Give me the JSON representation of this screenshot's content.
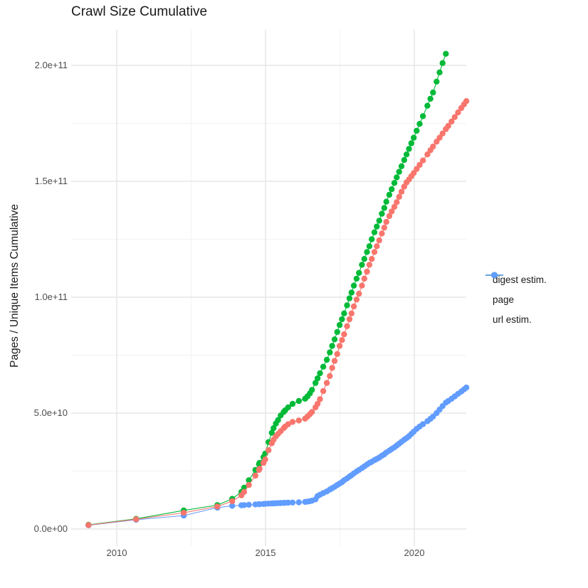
{
  "title": "Crawl Size Cumulative",
  "y_axis": {
    "title": "Pages / Unique Items Cumulative",
    "tick_labels": [
      "0.0e+00",
      "5.0e+10",
      "1.0e+11",
      "1.5e+11",
      "2.0e+11"
    ]
  },
  "x_axis": {
    "tick_labels": [
      "2010",
      "2015",
      "2020"
    ]
  },
  "legend": {
    "items": [
      {
        "label": "digest estim.",
        "color": "#F8766D"
      },
      {
        "label": "page",
        "color": "#00BA38"
      },
      {
        "label": "url estim.",
        "color": "#619CFF"
      }
    ]
  },
  "colors": {
    "digest": "#F8766D",
    "page": "#00BA38",
    "url": "#619CFF",
    "grid_major": "#e6e6e6",
    "grid_minor": "#f2f2f2",
    "axis_text": "#4d4d4d",
    "text": "#1a1a1a"
  },
  "chart_data": {
    "type": "scatter",
    "title": "Crawl Size Cumulative",
    "xlabel": "",
    "ylabel": "Pages / Unique Items Cumulative",
    "grid": true,
    "legend_position": "right",
    "x_ticks": [
      2010,
      2015,
      2020
    ],
    "x_minor_ticks": [
      2012.5,
      2017.5
    ],
    "x_range": [
      2008.5,
      2022.2
    ],
    "y_ticks": [
      0,
      50000000000.0,
      100000000000.0,
      150000000000.0,
      200000000000.0
    ],
    "y_tick_labels": [
      "0.0e+00",
      "5.0e+10",
      "1.0e+11",
      "1.5e+11",
      "2.0e+11"
    ],
    "y_minor_ticks": [
      25000000000.0,
      75000000000.0,
      125000000000.0,
      175000000000.0
    ],
    "y_range": [
      -8000000000.0,
      215000000000.0
    ],
    "draw_order": [
      "url estim.",
      "page",
      "digest estim."
    ],
    "series": [
      {
        "name": "url estim.",
        "color": "#619CFF",
        "points": [
          [
            2009.05,
            1600000000.0
          ],
          [
            2010.65,
            4000000000.0
          ],
          [
            2012.25,
            5800000000.0
          ],
          [
            2013.38,
            9200000000.0
          ],
          [
            2013.88,
            10000000000.0
          ],
          [
            2014.19,
            10200000000.0
          ],
          [
            2014.28,
            10300000000.0
          ],
          [
            2014.44,
            10450000000.0
          ],
          [
            2014.66,
            10600000000.0
          ],
          [
            2014.78,
            10700000000.0
          ],
          [
            2014.8,
            10720000000.0
          ],
          [
            2014.93,
            10800000000.0
          ],
          [
            2014.99,
            10850000000.0
          ],
          [
            2015.1,
            10950000000.0
          ],
          [
            2015.21,
            11000000000.0
          ],
          [
            2015.27,
            11050000000.0
          ],
          [
            2015.35,
            11100000000.0
          ],
          [
            2015.42,
            11150000000.0
          ],
          [
            2015.51,
            11200000000.0
          ],
          [
            2015.61,
            11250000000.0
          ],
          [
            2015.66,
            11300000000.0
          ],
          [
            2015.76,
            11350000000.0
          ],
          [
            2015.91,
            11400000000.0
          ],
          [
            2016.12,
            11500000000.0
          ],
          [
            2016.33,
            11700000000.0
          ],
          [
            2016.41,
            11800000000.0
          ],
          [
            2016.49,
            12000000000.0
          ],
          [
            2016.56,
            12200000000.0
          ],
          [
            2016.68,
            12800000000.0
          ],
          [
            2016.75,
            14200000000.0
          ],
          [
            2016.83,
            14800000000.0
          ],
          [
            2016.94,
            15500000000.0
          ],
          [
            2017.06,
            16200000000.0
          ],
          [
            2017.16,
            17000000000.0
          ],
          [
            2017.24,
            17600000000.0
          ],
          [
            2017.32,
            18200000000.0
          ],
          [
            2017.41,
            19000000000.0
          ],
          [
            2017.49,
            19600000000.0
          ],
          [
            2017.57,
            20200000000.0
          ],
          [
            2017.64,
            21000000000.0
          ],
          [
            2017.74,
            21800000000.0
          ],
          [
            2017.82,
            22600000000.0
          ],
          [
            2017.89,
            23200000000.0
          ],
          [
            2017.97,
            24000000000.0
          ],
          [
            2018.06,
            24800000000.0
          ],
          [
            2018.14,
            25500000000.0
          ],
          [
            2018.24,
            26300000000.0
          ],
          [
            2018.32,
            27000000000.0
          ],
          [
            2018.41,
            27800000000.0
          ],
          [
            2018.49,
            28500000000.0
          ],
          [
            2018.57,
            29000000000.0
          ],
          [
            2018.66,
            29700000000.0
          ],
          [
            2018.74,
            30200000000.0
          ],
          [
            2018.82,
            30800000000.0
          ],
          [
            2018.91,
            31600000000.0
          ],
          [
            2018.99,
            32200000000.0
          ],
          [
            2019.06,
            33000000000.0
          ],
          [
            2019.16,
            33800000000.0
          ],
          [
            2019.24,
            34500000000.0
          ],
          [
            2019.33,
            35200000000.0
          ],
          [
            2019.41,
            36000000000.0
          ],
          [
            2019.49,
            36800000000.0
          ],
          [
            2019.57,
            37600000000.0
          ],
          [
            2019.66,
            38500000000.0
          ],
          [
            2019.74,
            39200000000.0
          ],
          [
            2019.82,
            40000000000.0
          ],
          [
            2019.9,
            41000000000.0
          ],
          [
            2019.98,
            42000000000.0
          ],
          [
            2020.08,
            43200000000.0
          ],
          [
            2020.18,
            44200000000.0
          ],
          [
            2020.29,
            45200000000.0
          ],
          [
            2020.44,
            46500000000.0
          ],
          [
            2020.54,
            47500000000.0
          ],
          [
            2020.63,
            48500000000.0
          ],
          [
            2020.75,
            50000000000.0
          ],
          [
            2020.85,
            51500000000.0
          ],
          [
            2020.95,
            53000000000.0
          ],
          [
            2021.06,
            54500000000.0
          ],
          [
            2021.14,
            55200000000.0
          ],
          [
            2021.25,
            56200000000.0
          ],
          [
            2021.36,
            57200000000.0
          ],
          [
            2021.47,
            58300000000.0
          ],
          [
            2021.58,
            59300000000.0
          ],
          [
            2021.67,
            60200000000.0
          ],
          [
            2021.75,
            61000000000.0
          ]
        ]
      },
      {
        "name": "page",
        "color": "#00BA38",
        "points": [
          [
            2009.05,
            1800000000.0
          ],
          [
            2010.65,
            4400000000.0
          ],
          [
            2012.25,
            8000000000.0
          ],
          [
            2013.38,
            10300000000.0
          ],
          [
            2013.88,
            13000000000.0
          ],
          [
            2014.19,
            16000000000.0
          ],
          [
            2014.28,
            17800000000.0
          ],
          [
            2014.44,
            21000000000.0
          ],
          [
            2014.66,
            25500000000.0
          ],
          [
            2014.78,
            28000000000.0
          ],
          [
            2014.8,
            28500000000.0
          ],
          [
            2014.93,
            31000000000.0
          ],
          [
            2014.99,
            32500000000.0
          ],
          [
            2015.1,
            37500000000.0
          ],
          [
            2015.21,
            41500000000.0
          ],
          [
            2015.27,
            43500000000.0
          ],
          [
            2015.35,
            45500000000.0
          ],
          [
            2015.42,
            47000000000.0
          ],
          [
            2015.51,
            49000000000.0
          ],
          [
            2015.61,
            50500000000.0
          ],
          [
            2015.66,
            51200000000.0
          ],
          [
            2015.76,
            52500000000.0
          ],
          [
            2015.91,
            54000000000.0
          ],
          [
            2016.12,
            55200000000.0
          ],
          [
            2016.33,
            56200000000.0
          ],
          [
            2016.41,
            57200000000.0
          ],
          [
            2016.49,
            58500000000.0
          ],
          [
            2016.56,
            60000000000.0
          ],
          [
            2016.68,
            63000000000.0
          ],
          [
            2016.75,
            65000000000.0
          ],
          [
            2016.83,
            67200000000.0
          ],
          [
            2016.94,
            70000000000.0
          ],
          [
            2017.06,
            73000000000.0
          ],
          [
            2017.16,
            76200000000.0
          ],
          [
            2017.24,
            79000000000.0
          ],
          [
            2017.32,
            81800000000.0
          ],
          [
            2017.41,
            85000000000.0
          ],
          [
            2017.49,
            88000000000.0
          ],
          [
            2017.57,
            90500000000.0
          ],
          [
            2017.64,
            93000000000.0
          ],
          [
            2017.74,
            96500000000.0
          ],
          [
            2017.82,
            99500000000.0
          ],
          [
            2017.89,
            102000000000.0
          ],
          [
            2017.97,
            105000000000.0
          ],
          [
            2018.06,
            108000000000.0
          ],
          [
            2018.14,
            110500000000.0
          ],
          [
            2018.24,
            114000000000.0
          ],
          [
            2018.32,
            116500000000.0
          ],
          [
            2018.41,
            119500000000.0
          ],
          [
            2018.49,
            122000000000.0
          ],
          [
            2018.57,
            125000000000.0
          ],
          [
            2018.66,
            128000000000.0
          ],
          [
            2018.74,
            130500000000.0
          ],
          [
            2018.82,
            133000000000.0
          ],
          [
            2018.91,
            136000000000.0
          ],
          [
            2018.99,
            138500000000.0
          ],
          [
            2019.06,
            141200000000.0
          ],
          [
            2019.16,
            144200000000.0
          ],
          [
            2019.24,
            146600000000.0
          ],
          [
            2019.33,
            149300000000.0
          ],
          [
            2019.41,
            151700000000.0
          ],
          [
            2019.49,
            154100000000.0
          ],
          [
            2019.57,
            156500000000.0
          ],
          [
            2019.66,
            159200000000.0
          ],
          [
            2019.74,
            161600000000.0
          ],
          [
            2019.82,
            164000000000.0
          ],
          [
            2019.9,
            166400000000.0
          ],
          [
            2019.98,
            168800000000.0
          ],
          [
            2020.08,
            171800000000.0
          ],
          [
            2020.18,
            174800000000.0
          ],
          [
            2020.29,
            178100000000.0
          ],
          [
            2020.44,
            182600000000.0
          ],
          [
            2020.54,
            185600000000.0
          ],
          [
            2020.63,
            188300000000.0
          ],
          [
            2020.75,
            193000000000.0
          ],
          [
            2020.85,
            197000000000.0
          ],
          [
            2020.95,
            201000000000.0
          ],
          [
            2021.06,
            205000000000.0
          ]
        ]
      },
      {
        "name": "digest estim.",
        "color": "#F8766D",
        "points": [
          [
            2009.05,
            1700000000.0
          ],
          [
            2010.65,
            4200000000.0
          ],
          [
            2012.25,
            7000000000.0
          ],
          [
            2013.38,
            9700000000.0
          ],
          [
            2013.88,
            12000000000.0
          ],
          [
            2014.19,
            14500000000.0
          ],
          [
            2014.28,
            16000000000.0
          ],
          [
            2014.44,
            19000000000.0
          ],
          [
            2014.66,
            23000000000.0
          ],
          [
            2014.78,
            25500000000.0
          ],
          [
            2014.8,
            26000000000.0
          ],
          [
            2014.93,
            28500000000.0
          ],
          [
            2014.99,
            30000000000.0
          ],
          [
            2015.1,
            34000000000.0
          ],
          [
            2015.21,
            37000000000.0
          ],
          [
            2015.27,
            38500000000.0
          ],
          [
            2015.35,
            40000000000.0
          ],
          [
            2015.42,
            41000000000.0
          ],
          [
            2015.51,
            42200000000.0
          ],
          [
            2015.61,
            43500000000.0
          ],
          [
            2015.66,
            44200000000.0
          ],
          [
            2015.76,
            45200000000.0
          ],
          [
            2015.91,
            46200000000.0
          ],
          [
            2016.12,
            46800000000.0
          ],
          [
            2016.33,
            47600000000.0
          ],
          [
            2016.41,
            48500000000.0
          ],
          [
            2016.49,
            49500000000.0
          ],
          [
            2016.56,
            50500000000.0
          ],
          [
            2016.68,
            52500000000.0
          ],
          [
            2016.75,
            54000000000.0
          ],
          [
            2016.83,
            56000000000.0
          ],
          [
            2016.94,
            59500000000.0
          ],
          [
            2017.06,
            63000000000.0
          ],
          [
            2017.16,
            66000000000.0
          ],
          [
            2017.24,
            69500000000.0
          ],
          [
            2017.32,
            72500000000.0
          ],
          [
            2017.41,
            75500000000.0
          ],
          [
            2017.49,
            79000000000.0
          ],
          [
            2017.57,
            81500000000.0
          ],
          [
            2017.64,
            84000000000.0
          ],
          [
            2017.74,
            87500000000.0
          ],
          [
            2017.82,
            90500000000.0
          ],
          [
            2017.89,
            93000000000.0
          ],
          [
            2017.97,
            96000000000.0
          ],
          [
            2018.06,
            99000000000.0
          ],
          [
            2018.14,
            101500000000.0
          ],
          [
            2018.24,
            105000000000.0
          ],
          [
            2018.32,
            108000000000.0
          ],
          [
            2018.41,
            111000000000.0
          ],
          [
            2018.49,
            114000000000.0
          ],
          [
            2018.57,
            116500000000.0
          ],
          [
            2018.66,
            119500000000.0
          ],
          [
            2018.74,
            122000000000.0
          ],
          [
            2018.82,
            124500000000.0
          ],
          [
            2018.91,
            127500000000.0
          ],
          [
            2018.99,
            130000000000.0
          ],
          [
            2019.06,
            132500000000.0
          ],
          [
            2019.16,
            135000000000.0
          ],
          [
            2019.24,
            137000000000.0
          ],
          [
            2019.33,
            139000000000.0
          ],
          [
            2019.41,
            141000000000.0
          ],
          [
            2019.49,
            143300000000.0
          ],
          [
            2019.57,
            145500000000.0
          ],
          [
            2019.66,
            147700000000.0
          ],
          [
            2019.74,
            149500000000.0
          ],
          [
            2019.82,
            150800000000.0
          ],
          [
            2019.9,
            152200000000.0
          ],
          [
            2019.98,
            153600000000.0
          ],
          [
            2020.08,
            155300000000.0
          ],
          [
            2020.18,
            157100000000.0
          ],
          [
            2020.29,
            159000000000.0
          ],
          [
            2020.44,
            161600000000.0
          ],
          [
            2020.54,
            163400000000.0
          ],
          [
            2020.63,
            165000000000.0
          ],
          [
            2020.75,
            167100000000.0
          ],
          [
            2020.85,
            168800000000.0
          ],
          [
            2020.95,
            170600000000.0
          ],
          [
            2021.06,
            172500000000.0
          ],
          [
            2021.14,
            173900000000.0
          ],
          [
            2021.25,
            175800000000.0
          ],
          [
            2021.36,
            177700000000.0
          ],
          [
            2021.47,
            179700000000.0
          ],
          [
            2021.58,
            181600000000.0
          ],
          [
            2021.67,
            183200000000.0
          ],
          [
            2021.75,
            184600000000.0
          ]
        ]
      }
    ]
  }
}
